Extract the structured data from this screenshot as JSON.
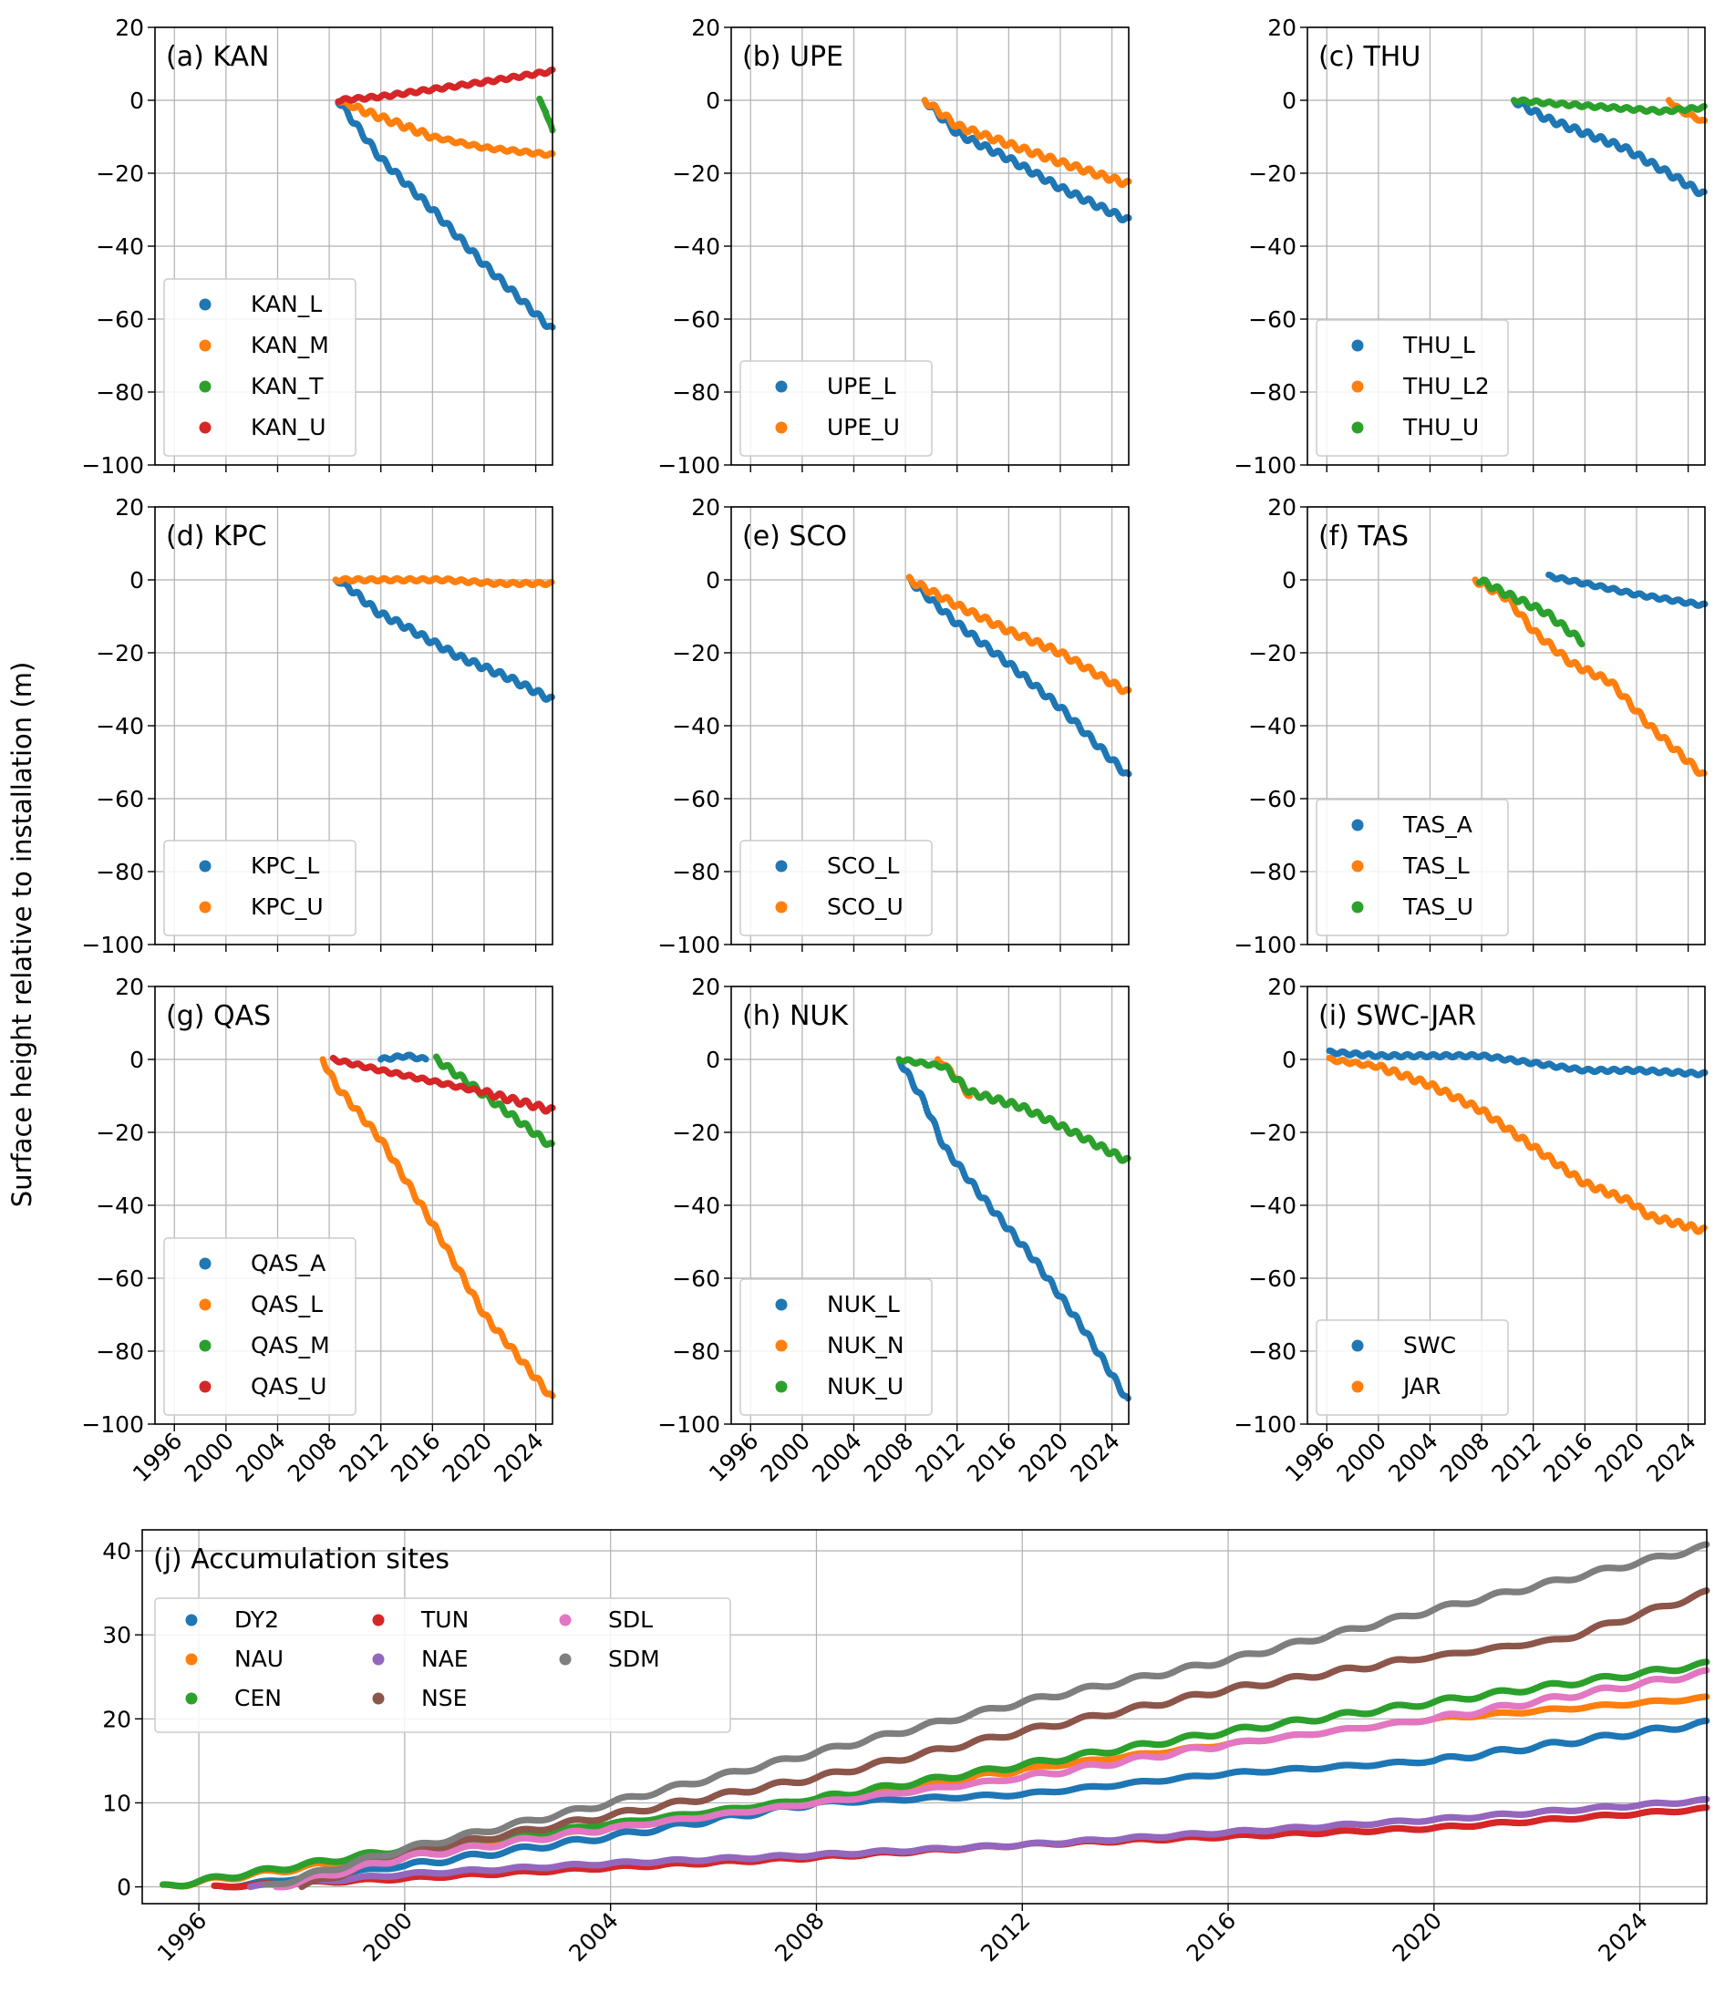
{
  "ylabel": "Surface height relative to installation (m)",
  "colors": {
    "c0": "#1f77b4",
    "c1": "#ff7f0e",
    "c2": "#2ca02c",
    "c3": "#d62728",
    "c4": "#9467bd",
    "c5": "#8c564b",
    "c6": "#e377c2",
    "c7": "#7f7f7f"
  },
  "chart_data": [
    {
      "id": "a",
      "type": "scatter",
      "title": "(a) KAN",
      "x_unit": "year",
      "xlim": [
        1994.5,
        2025.3
      ],
      "ylim": [
        -100,
        20
      ],
      "xticks": [
        "1996",
        "2000",
        "2004",
        "2008",
        "2012",
        "2016",
        "2020",
        "2024"
      ],
      "yticks": [
        "20",
        "0",
        "−20",
        "−40",
        "−60",
        "−80",
        "−100"
      ],
      "show_xticklabels": false,
      "grid": true,
      "legend_location": "lower left",
      "series": [
        {
          "name": "KAN_L",
          "color": "c0",
          "x": [
            2008.7,
            2009.5,
            2012,
            2016,
            2020,
            2025.3
          ],
          "y": [
            0,
            -4,
            -16,
            -30,
            -45,
            -63
          ]
        },
        {
          "name": "KAN_M",
          "color": "c1",
          "x": [
            2008.7,
            2010,
            2013,
            2016,
            2020,
            2025.3
          ],
          "y": [
            0,
            -2,
            -6,
            -10,
            -13,
            -15
          ]
        },
        {
          "name": "KAN_T",
          "color": "c2",
          "x": [
            2024.3,
            2024.8,
            2025.3
          ],
          "y": [
            0,
            -3,
            -9
          ]
        },
        {
          "name": "KAN_U",
          "color": "c3",
          "x": [
            2008.7,
            2012,
            2016,
            2020,
            2025.3
          ],
          "y": [
            0,
            1,
            3,
            5,
            8
          ]
        }
      ]
    },
    {
      "id": "b",
      "type": "scatter",
      "title": "(b) UPE",
      "x_unit": "year",
      "xlim": [
        1994.5,
        2025.3
      ],
      "ylim": [
        -100,
        20
      ],
      "xticks": [
        "1996",
        "2000",
        "2004",
        "2008",
        "2012",
        "2016",
        "2020",
        "2024"
      ],
      "yticks": [
        "20",
        "0",
        "−20",
        "−40",
        "−60",
        "−80",
        "−100"
      ],
      "show_xticklabels": false,
      "grid": true,
      "legend_location": "lower left",
      "series": [
        {
          "name": "UPE_L",
          "color": "c0",
          "x": [
            2009.5,
            2012,
            2016,
            2020,
            2025.3
          ],
          "y": [
            0,
            -9,
            -16,
            -24,
            -33
          ]
        },
        {
          "name": "UPE_U",
          "color": "c1",
          "x": [
            2009.5,
            2012,
            2016,
            2020,
            2025.3
          ],
          "y": [
            0,
            -7,
            -12,
            -17,
            -23
          ]
        }
      ]
    },
    {
      "id": "c",
      "type": "scatter",
      "title": "(c) THU",
      "x_unit": "year",
      "xlim": [
        1994.5,
        2025.3
      ],
      "ylim": [
        -100,
        20
      ],
      "xticks": [
        "1996",
        "2000",
        "2004",
        "2008",
        "2012",
        "2016",
        "2020",
        "2024"
      ],
      "yticks": [
        "20",
        "0",
        "−20",
        "−40",
        "−60",
        "−80",
        "−100"
      ],
      "show_xticklabels": false,
      "grid": true,
      "legend_location": "lower left",
      "series": [
        {
          "name": "THU_L",
          "color": "c0",
          "x": [
            2010.5,
            2013,
            2016,
            2019,
            2022,
            2025.3
          ],
          "y": [
            0,
            -5,
            -9,
            -13,
            -19,
            -26
          ]
        },
        {
          "name": "THU_L2",
          "color": "c1",
          "x": [
            2022.5,
            2023.5,
            2025.3
          ],
          "y": [
            0,
            -3,
            -6
          ]
        },
        {
          "name": "THU_U",
          "color": "c2",
          "x": [
            2010.5,
            2014,
            2018,
            2022,
            2025.3
          ],
          "y": [
            0,
            -1,
            -2,
            -3,
            -2
          ]
        }
      ]
    },
    {
      "id": "d",
      "type": "scatter",
      "title": "(d) KPC",
      "x_unit": "year",
      "xlim": [
        1994.5,
        2025.3
      ],
      "ylim": [
        -100,
        20
      ],
      "xticks": [
        "1996",
        "2000",
        "2004",
        "2008",
        "2012",
        "2016",
        "2020",
        "2024"
      ],
      "yticks": [
        "20",
        "0",
        "−20",
        "−40",
        "−60",
        "−80",
        "−100"
      ],
      "show_xticklabels": false,
      "grid": true,
      "legend_location": "lower left",
      "series": [
        {
          "name": "KPC_L",
          "color": "c0",
          "x": [
            2008.5,
            2009.5,
            2011.8,
            2014,
            2018,
            2022,
            2025.3
          ],
          "y": [
            0,
            -2,
            -9,
            -13,
            -21,
            -27,
            -33
          ]
        },
        {
          "name": "KPC_U",
          "color": "c1",
          "x": [
            2008.5,
            2013,
            2017,
            2021,
            2025.3
          ],
          "y": [
            0,
            0,
            0,
            -1,
            -1
          ]
        }
      ]
    },
    {
      "id": "e",
      "type": "scatter",
      "title": "(e) SCO",
      "x_unit": "year",
      "xlim": [
        1994.5,
        2025.3
      ],
      "ylim": [
        -100,
        20
      ],
      "xticks": [
        "1996",
        "2000",
        "2004",
        "2008",
        "2012",
        "2016",
        "2020",
        "2024"
      ],
      "yticks": [
        "20",
        "0",
        "−20",
        "−40",
        "−60",
        "−80",
        "−100"
      ],
      "show_xticklabels": false,
      "grid": true,
      "legend_location": "lower left",
      "series": [
        {
          "name": "SCO_L",
          "color": "c0",
          "x": [
            2008.3,
            2012,
            2016,
            2020,
            2025.3
          ],
          "y": [
            0,
            -12,
            -23,
            -35,
            -54
          ]
        },
        {
          "name": "SCO_U",
          "color": "c1",
          "x": [
            2008.3,
            2012,
            2016,
            2020,
            2025.3
          ],
          "y": [
            0,
            -7,
            -14,
            -20,
            -31
          ]
        }
      ]
    },
    {
      "id": "f",
      "type": "scatter",
      "title": "(f) TAS",
      "x_unit": "year",
      "xlim": [
        1994.5,
        2025.3
      ],
      "ylim": [
        -100,
        20
      ],
      "xticks": [
        "1996",
        "2000",
        "2004",
        "2008",
        "2012",
        "2016",
        "2020",
        "2024"
      ],
      "yticks": [
        "20",
        "0",
        "−20",
        "−40",
        "−60",
        "−80",
        "−100"
      ],
      "show_xticklabels": false,
      "grid": true,
      "legend_location": "lower left",
      "series": [
        {
          "name": "TAS_A",
          "color": "c0",
          "x": [
            2013.2,
            2016,
            2020,
            2025.3
          ],
          "y": [
            1,
            -1,
            -4,
            -7
          ]
        },
        {
          "name": "TAS_L",
          "color": "c1",
          "x": [
            2007.5,
            2010,
            2012,
            2015,
            2018,
            2021,
            2025.3
          ],
          "y": [
            0,
            -5,
            -14,
            -23,
            -28,
            -40,
            -54
          ]
        },
        {
          "name": "TAS_U",
          "color": "c2",
          "x": [
            2007.8,
            2010,
            2013,
            2015.8
          ],
          "y": [
            0,
            -4,
            -9,
            -17
          ]
        }
      ]
    },
    {
      "id": "g",
      "type": "scatter",
      "title": "(g) QAS",
      "x_unit": "year",
      "xlim": [
        1994.5,
        2025.3
      ],
      "ylim": [
        -100,
        20
      ],
      "xticks": [
        "1996",
        "2000",
        "2004",
        "2008",
        "2012",
        "2016",
        "2020",
        "2024"
      ],
      "yticks": [
        "20",
        "0",
        "−20",
        "−40",
        "−60",
        "−80",
        "−100"
      ],
      "show_xticklabels": true,
      "grid": true,
      "legend_location": "lower left",
      "series": [
        {
          "name": "QAS_A",
          "color": "c0",
          "x": [
            2012,
            2014,
            2015.5
          ],
          "y": [
            0,
            1,
            0
          ]
        },
        {
          "name": "QAS_L",
          "color": "c1",
          "x": [
            2007.5,
            2008.5,
            2012,
            2016,
            2020,
            2025.3
          ],
          "y": [
            0,
            -7,
            -22,
            -45,
            -70,
            -93
          ]
        },
        {
          "name": "QAS_M",
          "color": "c2",
          "x": [
            2016.3,
            2019,
            2022,
            2025.3
          ],
          "y": [
            0,
            -7,
            -15,
            -24
          ]
        },
        {
          "name": "QAS_U",
          "color": "c3",
          "x": [
            2008.3,
            2012,
            2016,
            2020,
            2025.3
          ],
          "y": [
            0,
            -3,
            -6,
            -9,
            -14
          ]
        }
      ]
    },
    {
      "id": "h",
      "type": "scatter",
      "title": "(h) NUK",
      "x_unit": "year",
      "xlim": [
        1994.5,
        2025.3
      ],
      "ylim": [
        -100,
        20
      ],
      "xticks": [
        "1996",
        "2000",
        "2004",
        "2008",
        "2012",
        "2016",
        "2020",
        "2024"
      ],
      "yticks": [
        "20",
        "0",
        "−20",
        "−40",
        "−60",
        "−80",
        "−100"
      ],
      "show_xticklabels": true,
      "grid": true,
      "legend_location": "lower left",
      "series": [
        {
          "name": "NUK_L",
          "color": "c0",
          "x": [
            2007.5,
            2009.5,
            2011,
            2014,
            2018,
            2022,
            2025.3
          ],
          "y": [
            0,
            -12,
            -24,
            -38,
            -55,
            -75,
            -94
          ]
        },
        {
          "name": "NUK_N",
          "color": "c1",
          "x": [
            2010.5,
            2011.5,
            2013
          ],
          "y": [
            0,
            -3,
            -10
          ]
        },
        {
          "name": "NUK_U",
          "color": "c2",
          "x": [
            2007.5,
            2011,
            2013,
            2017,
            2021,
            2025.3
          ],
          "y": [
            0,
            -2,
            -9,
            -13,
            -20,
            -28
          ]
        }
      ]
    },
    {
      "id": "i",
      "type": "scatter",
      "title": "(i) SWC-JAR",
      "x_unit": "year",
      "xlim": [
        1994.5,
        2025.3
      ],
      "ylim": [
        -100,
        20
      ],
      "xticks": [
        "1996",
        "2000",
        "2004",
        "2008",
        "2012",
        "2016",
        "2020",
        "2024"
      ],
      "yticks": [
        "20",
        "0",
        "−20",
        "−40",
        "−60",
        "−80",
        "−100"
      ],
      "show_xticklabels": true,
      "grid": true,
      "legend_location": "lower left",
      "series": [
        {
          "name": "SWC",
          "color": "c0",
          "x": [
            1996.2,
            2000,
            2004,
            2008,
            2012,
            2016,
            2020,
            2025.3
          ],
          "y": [
            2,
            1,
            1,
            1,
            -1,
            -3,
            -3,
            -4
          ]
        },
        {
          "name": "JAR",
          "color": "c1",
          "x": [
            1996.2,
            2000,
            2004,
            2008,
            2012,
            2016,
            2019.5,
            2021,
            2025.3
          ],
          "y": [
            0,
            -2,
            -7,
            -14,
            -24,
            -34,
            -39,
            -43,
            -47
          ]
        }
      ]
    },
    {
      "id": "j",
      "type": "scatter",
      "title": "(j) Accumulation sites",
      "x_unit": "year",
      "xlim": [
        1994.9,
        2025.3
      ],
      "ylim": [
        -2,
        42.5
      ],
      "xticks": [
        "1996",
        "2000",
        "2004",
        "2008",
        "2012",
        "2016",
        "2020",
        "2024"
      ],
      "yticks": [
        "0",
        "10",
        "20",
        "30",
        "40"
      ],
      "show_xticklabels": true,
      "grid": true,
      "legend_location": "upper left",
      "legend_columns": 3,
      "series": [
        {
          "name": "DY2",
          "color": "c0",
          "x": [
            1996.5,
            2000,
            2004,
            2008,
            2012,
            2016,
            2020,
            2025.3
          ],
          "y": [
            0,
            2.5,
            6,
            10,
            11,
            13.5,
            15,
            19.5
          ]
        },
        {
          "name": "NAU",
          "color": "c1",
          "x": [
            1995.3,
            2000,
            2004,
            2008,
            2012,
            2016,
            2020,
            2025.3
          ],
          "y": [
            0,
            4,
            7,
            10,
            14,
            17,
            20,
            22.5
          ]
        },
        {
          "name": "CEN",
          "color": "c2",
          "x": [
            1995.3,
            2000,
            2004,
            2008,
            2012,
            2016,
            2020,
            2025.3
          ],
          "y": [
            0,
            4.5,
            7.5,
            10.5,
            14.5,
            18.5,
            22,
            26.5
          ]
        },
        {
          "name": "TUN",
          "color": "c3",
          "x": [
            1996.3,
            2000,
            2004,
            2008,
            2012,
            2016,
            2020,
            2025.3
          ],
          "y": [
            0,
            1,
            2.3,
            3.5,
            5,
            6,
            7,
            9.3
          ]
        },
        {
          "name": "NAE",
          "color": "c4",
          "x": [
            1997,
            2000,
            2004,
            2008,
            2012,
            2016,
            2020,
            2025.3
          ],
          "y": [
            0,
            1.5,
            2.8,
            3.8,
            5,
            6.5,
            8,
            10.3
          ]
        },
        {
          "name": "NSE",
          "color": "c5",
          "x": [
            1998,
            2000,
            2004,
            2008,
            2012,
            2016,
            2019.5,
            2022.5,
            2025.3
          ],
          "y": [
            0,
            4,
            8.5,
            13,
            18.5,
            23.5,
            27,
            29.5,
            35
          ]
        },
        {
          "name": "SDL",
          "color": "c6",
          "x": [
            1997.5,
            2000,
            2004,
            2008,
            2012,
            2016,
            2020,
            2025.3
          ],
          "y": [
            0,
            3.5,
            7,
            10,
            13,
            17,
            20,
            25.5
          ]
        },
        {
          "name": "SDM",
          "color": "c7",
          "x": [
            1997.3,
            2000,
            2004,
            2008,
            2012,
            2016,
            2020,
            2025.3
          ],
          "y": [
            0,
            4.5,
            10,
            16,
            22,
            27,
            33,
            40.5
          ]
        }
      ]
    }
  ]
}
